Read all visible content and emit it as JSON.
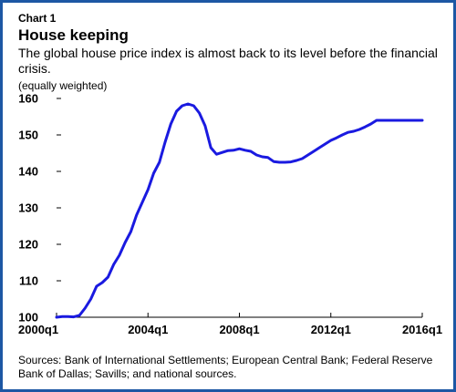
{
  "header": {
    "chart_number": "Chart 1",
    "title": "House keeping",
    "subtitle": "The global house price index is almost back to its level before the financial crisis.",
    "unit_note": "(equally weighted)"
  },
  "footer": {
    "sources": "Sources: Bank of International Settlements; European Central Bank; Federal Reserve Bank of Dallas; Savills; and national sources."
  },
  "colors": {
    "frame": "#1d57a4",
    "line": "#1a1ae0",
    "axis": "#000000",
    "grid": "#d9d9d9"
  },
  "chart_data": {
    "type": "line",
    "x_ticks": [
      "2000q1",
      "2004q1",
      "2008q1",
      "2012q1",
      "2016q1"
    ],
    "y_ticks": [
      100,
      110,
      120,
      130,
      140,
      150,
      160
    ],
    "ylim": [
      100,
      160
    ],
    "xlim": [
      "2000q1",
      "2016q1"
    ],
    "grid": false,
    "series": [
      {
        "x": [
          "2000q1",
          "2000q2",
          "2000q3",
          "2000q4",
          "2001q1",
          "2001q2",
          "2001q3",
          "2001q4",
          "2002q1",
          "2002q2",
          "2002q3",
          "2002q4",
          "2003q1",
          "2003q2",
          "2003q3",
          "2003q4",
          "2004q1",
          "2004q2",
          "2004q3",
          "2004q4",
          "2005q1",
          "2005q2",
          "2005q3",
          "2005q4",
          "2006q1",
          "2006q2",
          "2006q3",
          "2006q4",
          "2007q1",
          "2007q2",
          "2007q3",
          "2007q4",
          "2008q1",
          "2008q2",
          "2008q3",
          "2008q4",
          "2009q1",
          "2009q2",
          "2009q3",
          "2009q4",
          "2010q1",
          "2010q2",
          "2010q3",
          "2010q4",
          "2011q1",
          "2011q2",
          "2011q3",
          "2011q4",
          "2012q1",
          "2012q2",
          "2012q3",
          "2012q4",
          "2013q1",
          "2013q2",
          "2013q3",
          "2013q4",
          "2014q1",
          "2014q2",
          "2014q3",
          "2014q4",
          "2015q1",
          "2015q2",
          "2015q3",
          "2015q4",
          "2016q1"
        ],
        "values": [
          100.0,
          100.2,
          100.2,
          100.1,
          100.5,
          102.5,
          105.0,
          108.5,
          109.5,
          111.0,
          114.5,
          117.0,
          120.5,
          123.5,
          128.0,
          131.5,
          135.0,
          139.5,
          142.5,
          148.0,
          153.0,
          156.5,
          158.0,
          158.5,
          158.0,
          156.0,
          152.5,
          146.5,
          144.7,
          145.2,
          145.7,
          145.8,
          146.2,
          145.8,
          145.5,
          144.5,
          144.0,
          143.8,
          142.7,
          142.5,
          142.5,
          142.6,
          143.0,
          143.5,
          144.5,
          145.5,
          146.5,
          147.5,
          148.5,
          149.2,
          150.0,
          150.7,
          151.0,
          151.5,
          152.2,
          153.0,
          154.0,
          154.0,
          154.0,
          154.0,
          154.0,
          154.0,
          154.0,
          154.0,
          154.0
        ]
      }
    ]
  }
}
